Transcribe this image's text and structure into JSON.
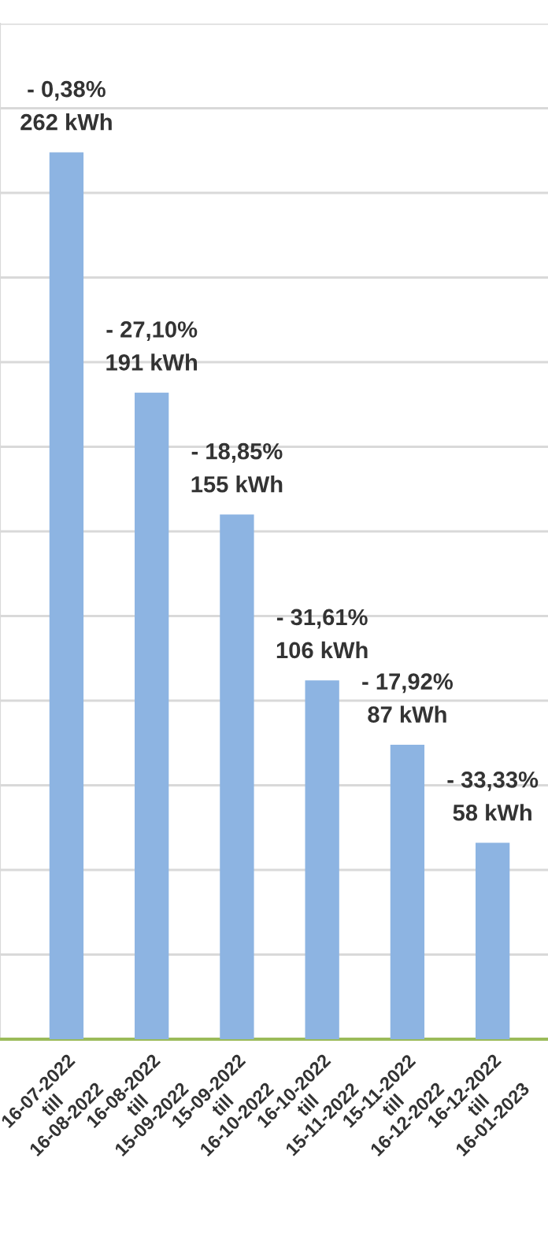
{
  "chart_data": {
    "type": "bar",
    "categories": [
      "16-07-2022\ntill\n16-08-2022",
      "16-08-2022\ntill\n15-09-2022",
      "15-09-2022\ntill\n16-10-2022",
      "16-10-2022\ntill\n15-11-2022",
      "15-11-2022\ntill\n16-12-2022",
      "16-12-2022\ntill\n16-01-2023"
    ],
    "values": [
      262,
      191,
      155,
      106,
      87,
      58
    ],
    "value_labels": [
      "- 0,38%\n262 kWh",
      "- 27,10%\n191 kWh",
      "- 18,85%\n155 kWh",
      "- 31,61%\n106 kWh",
      "- 17,92%\n87 kWh",
      "- 33,33%\n58 kWh"
    ],
    "color": "#8db4e2",
    "ylim": [
      0,
      300
    ],
    "yticks": [
      {
        "value": 0,
        "label": null
      },
      {
        "value": 25,
        "label": null
      },
      {
        "value": 50,
        "label": null
      },
      {
        "value": 75,
        "label": null
      },
      {
        "value": 100,
        "label": null
      },
      {
        "value": 125,
        "label": null
      },
      {
        "value": 150,
        "label": null
      },
      {
        "value": 175,
        "label": null
      },
      {
        "value": 200,
        "label": null
      },
      {
        "value": 225,
        "label": null
      },
      {
        "value": 250,
        "label": null
      },
      {
        "value": 275,
        "label": null
      },
      {
        "value": 300,
        "label": null
      }
    ],
    "tick_labels": "x",
    "grid": "y",
    "legend": false
  }
}
